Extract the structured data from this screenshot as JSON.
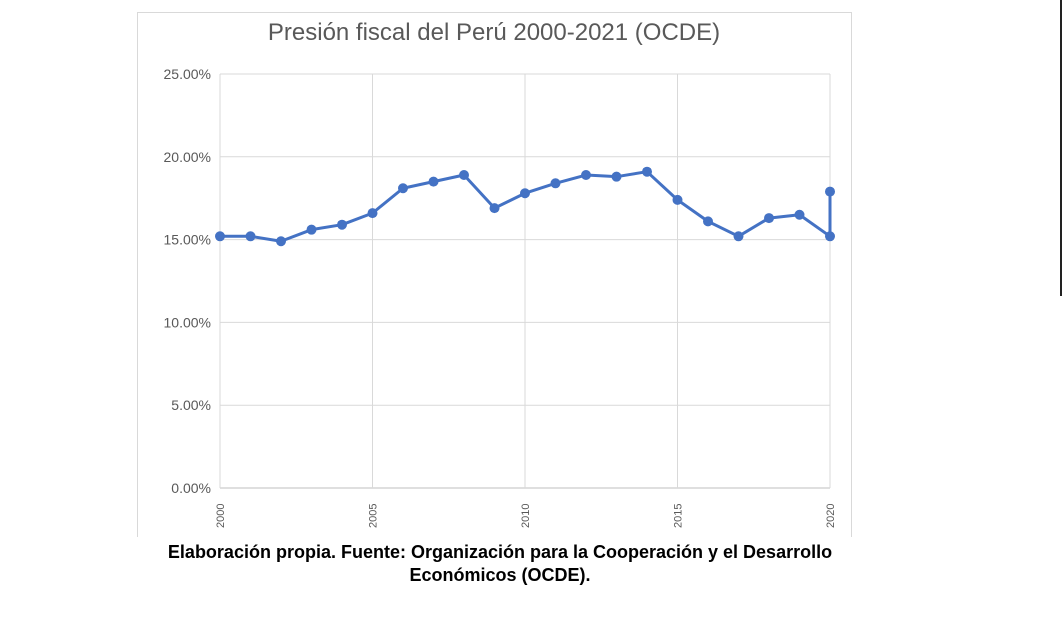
{
  "chart_data": {
    "type": "line",
    "title": "Presión fiscal del Perú 2000-2021 (OCDE)",
    "xlabel": "",
    "ylabel": "",
    "x": [
      2000,
      2001,
      2002,
      2003,
      2004,
      2005,
      2006,
      2007,
      2008,
      2009,
      2010,
      2011,
      2012,
      2013,
      2014,
      2015,
      2016,
      2017,
      2018,
      2019,
      2020,
      2021
    ],
    "values": [
      15.2,
      15.2,
      14.9,
      15.6,
      15.9,
      16.6,
      18.1,
      18.5,
      18.9,
      16.9,
      17.8,
      18.4,
      18.9,
      18.8,
      19.1,
      17.4,
      16.1,
      15.2,
      16.3,
      16.5,
      15.2,
      17.9
    ],
    "xlim": [
      2000,
      2020
    ],
    "ylim": [
      0,
      25
    ],
    "x_ticks": [
      "2000",
      "2005",
      "2010",
      "2015",
      "2020"
    ],
    "y_ticks": [
      "0.00%",
      "5.00%",
      "10.00%",
      "15.00%",
      "20.00%",
      "25.00%"
    ],
    "grid": true,
    "legend": "none",
    "series_color": "#4472c4"
  },
  "caption": {
    "line1": "Elaboración propia. Fuente: Organización para la Cooperación y el Desarrollo",
    "line2": "Económicos (OCDE)."
  }
}
